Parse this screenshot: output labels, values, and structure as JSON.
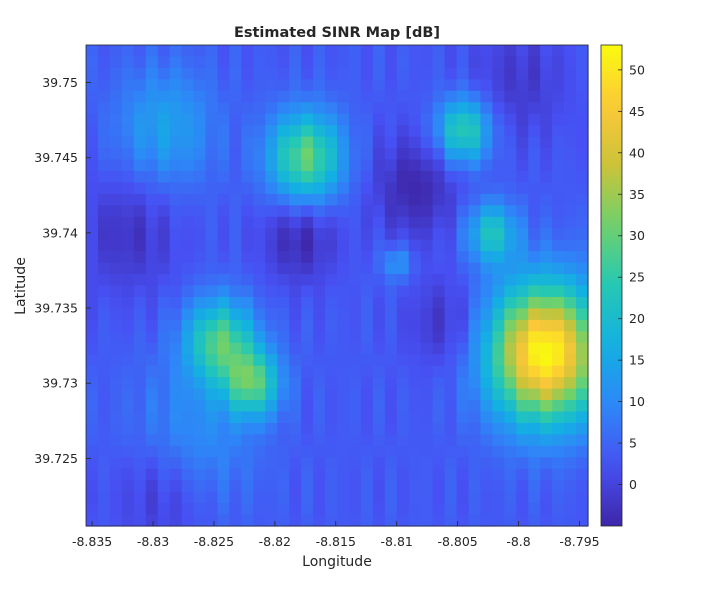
{
  "chart_data": {
    "type": "heatmap",
    "title": "Estimated SINR Map [dB]",
    "xlabel": "Longitude",
    "ylabel": "Latitude",
    "xlim": [
      -8.8355,
      -8.7943
    ],
    "ylim": [
      39.7205,
      39.7525
    ],
    "x_ticks": [
      -8.835,
      -8.83,
      -8.825,
      -8.82,
      -8.815,
      -8.81,
      -8.805,
      -8.8,
      -8.795
    ],
    "x_tick_labels": [
      "-8.835",
      "-8.83",
      "-8.825",
      "-8.82",
      "-8.815",
      "-8.81",
      "-8.805",
      "-8.8",
      "-8.795"
    ],
    "y_ticks": [
      39.725,
      39.73,
      39.735,
      39.74,
      39.745,
      39.75
    ],
    "y_tick_labels": [
      "39.725",
      "39.73",
      "39.735",
      "39.74",
      "39.745",
      "39.75"
    ],
    "colorbar": {
      "colormap": "parula",
      "range": [
        -5,
        53
      ],
      "ticks": [
        0,
        5,
        10,
        15,
        20,
        25,
        30,
        35,
        40,
        45,
        50
      ],
      "tick_labels": [
        "0",
        "5",
        "10",
        "15",
        "20",
        "25",
        "30",
        "35",
        "40",
        "45",
        "50"
      ]
    },
    "grid": "off",
    "grid_size": [
      42,
      42
    ],
    "field": {
      "baseline_db": 3.5,
      "hotspots": [
        {
          "lon": -8.7978,
          "lat": 39.732,
          "peak_db": 53,
          "spread": 0.0045
        },
        {
          "lon": -8.8175,
          "lat": 39.745,
          "peak_db": 30,
          "spread": 0.003
        },
        {
          "lon": -8.8245,
          "lat": 39.7328,
          "peak_db": 28,
          "spread": 0.0028
        },
        {
          "lon": -8.8218,
          "lat": 39.73,
          "peak_db": 27,
          "spread": 0.0022
        },
        {
          "lon": -8.8045,
          "lat": 39.7468,
          "peak_db": 26,
          "spread": 0.0022
        },
        {
          "lon": -8.8022,
          "lat": 39.74,
          "peak_db": 22,
          "spread": 0.002
        },
        {
          "lon": -8.829,
          "lat": 39.747,
          "peak_db": 14,
          "spread": 0.004
        },
        {
          "lon": -8.81,
          "lat": 39.738,
          "peak_db": 13,
          "spread": 0.0012
        },
        {
          "lon": -8.827,
          "lat": 39.726,
          "peak_db": 12,
          "spread": 0.005
        }
      ],
      "interference_valleys": [
        {
          "lon": -8.818,
          "lat": 39.7397,
          "depth_db": -8,
          "spread": 0.003
        },
        {
          "lon": -8.8085,
          "lat": 39.743,
          "depth_db": -8,
          "spread": 0.0035
        },
        {
          "lon": -8.832,
          "lat": 39.74,
          "depth_db": -6,
          "spread": 0.004
        },
        {
          "lon": -8.829,
          "lat": 39.723,
          "depth_db": -7,
          "spread": 0.004
        },
        {
          "lon": -8.806,
          "lat": 39.734,
          "depth_db": -6,
          "spread": 0.003
        },
        {
          "lon": -8.8,
          "lat": 39.75,
          "depth_db": -5,
          "spread": 0.004
        }
      ]
    }
  }
}
